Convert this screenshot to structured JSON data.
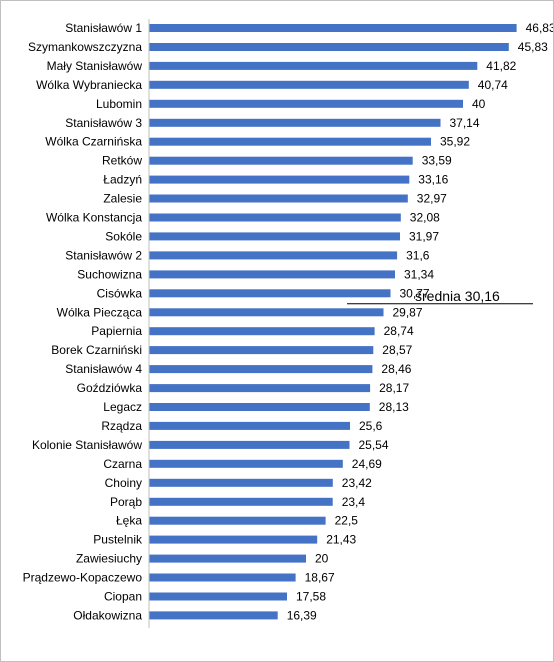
{
  "chart_data": {
    "type": "bar",
    "orientation": "horizontal",
    "categories": [
      "Stanisławów 1",
      "Szymankowszczyzna",
      "Mały Stanisławów",
      "Wólka Wybraniecka",
      "Lubomin",
      "Stanisławów 3",
      "Wólka Czarnińska",
      "Retków",
      "Ładzyń",
      "Zalesie",
      "Wólka Konstancja",
      "Sokóle",
      "Stanisławów 2",
      "Suchowizna",
      "Cisówka",
      "Wólka Piecząca",
      "Papiernia",
      "Borek Czarniński",
      "Stanisławów 4",
      "Goździówka",
      "Legacz",
      "Rządza",
      "Kolonie Stanisławów",
      "Czarna",
      "Choiny",
      "Porąb",
      "Łęka",
      "Pustelnik",
      "Zawiesiuchy",
      "Prądzewo-Kopaczewo",
      "Ciopan",
      "Ołdakowizna"
    ],
    "values": [
      46.83,
      45.83,
      41.82,
      40.74,
      40,
      37.14,
      35.92,
      33.59,
      33.16,
      32.97,
      32.08,
      31.97,
      31.6,
      31.34,
      30.77,
      29.87,
      28.74,
      28.57,
      28.46,
      28.17,
      28.13,
      25.6,
      25.54,
      24.69,
      23.42,
      23.4,
      22.5,
      21.43,
      20,
      18.67,
      17.58,
      16.39
    ],
    "value_labels": [
      "46,83",
      "45,83",
      "41,82",
      "40,74",
      "40",
      "37,14",
      "35,92",
      "33,59",
      "33,16",
      "32,97",
      "32,08",
      "31,97",
      "31,6",
      "31,34",
      "30,77",
      "29,87",
      "28,74",
      "28,57",
      "28,46",
      "28,17",
      "28,13",
      "25,6",
      "25,54",
      "24,69",
      "23,42",
      "23,4",
      "22,5",
      "21,43",
      "20",
      "18,67",
      "17,58",
      "16,39"
    ],
    "xlim": [
      0,
      50
    ],
    "grid": false,
    "bar_color": "#4472c4",
    "reference_line": {
      "value": 30.16,
      "label": "średnia  30,16"
    }
  }
}
